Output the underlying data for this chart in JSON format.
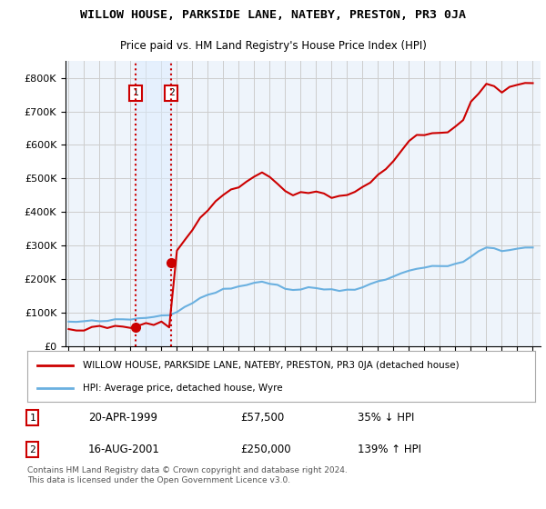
{
  "title": "WILLOW HOUSE, PARKSIDE LANE, NATEBY, PRESTON, PR3 0JA",
  "subtitle": "Price paid vs. HM Land Registry's House Price Index (HPI)",
  "legend_line1": "WILLOW HOUSE, PARKSIDE LANE, NATEBY, PRESTON, PR3 0JA (detached house)",
  "legend_line2": "HPI: Average price, detached house, Wyre",
  "sale1_date": "20-APR-1999",
  "sale1_price": 57500,
  "sale1_label": "35% ↓ HPI",
  "sale2_date": "16-AUG-2001",
  "sale2_price": 250000,
  "sale2_label": "139% ↑ HPI",
  "footnote": "Contains HM Land Registry data © Crown copyright and database right 2024.\nThis data is licensed under the Open Government Licence v3.0.",
  "ylim": [
    0,
    850000
  ],
  "hpi_color": "#6ab0e0",
  "price_color": "#cc0000",
  "vline_color": "#cc0000",
  "bg_color": "#eef4fb",
  "plot_bg": "#ffffff",
  "grid_color": "#cccccc"
}
